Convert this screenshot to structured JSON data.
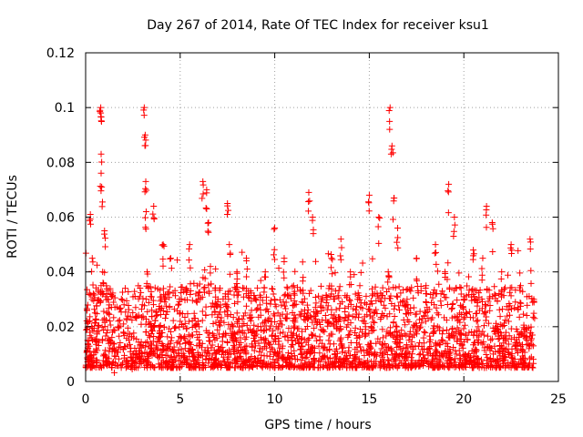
{
  "chart_data": {
    "type": "scatter",
    "title": "Day 267 of 2014, Rate Of TEC Index for receiver ksu1",
    "xlabel": "GPS time / hours",
    "ylabel": "ROTI / TECUs",
    "xlim": [
      0,
      25
    ],
    "ylim": [
      0,
      0.12
    ],
    "x_ticks": [
      0,
      5,
      10,
      15,
      20,
      25
    ],
    "x_tick_labels": [
      "0",
      "5",
      "10",
      "15",
      "20",
      "25"
    ],
    "y_ticks": [
      0,
      0.02,
      0.04,
      0.06,
      0.08,
      0.1,
      0.12
    ],
    "y_tick_labels": [
      "0",
      "0.02",
      "0.04",
      "0.06",
      "0.08",
      "0.1",
      "0.12"
    ],
    "grid": true,
    "marker": "+",
    "color": "#ff0000",
    "series": [
      {
        "name": "ROTI",
        "x": [
          0.1,
          0.25,
          0.35,
          0.5,
          0.6,
          0.8,
          0.8,
          0.82,
          0.85,
          0.9,
          1.0,
          1.2,
          1.5,
          2.0,
          2.5,
          3.0,
          3.1,
          3.15,
          3.18,
          3.2,
          3.25,
          3.5,
          3.6,
          4.0,
          4.1,
          4.5,
          5.0,
          5.5,
          6.0,
          6.2,
          6.4,
          6.5,
          6.6,
          7.0,
          7.5,
          7.6,
          7.8,
          8.0,
          8.5,
          9.0,
          9.5,
          10.0,
          10.2,
          10.5,
          11.0,
          11.5,
          11.8,
          12.0,
          12.5,
          13.0,
          13.5,
          14.0,
          14.5,
          14.8,
          15.0,
          15.5,
          16.0,
          16.1,
          16.2,
          16.3,
          16.5,
          17.0,
          17.5,
          18.0,
          18.5,
          19.0,
          19.2,
          19.5,
          20.0,
          20.5,
          21.0,
          21.2,
          21.5,
          22.0,
          22.5,
          23.0,
          23.5,
          23.7
        ],
        "values": [
          0.015,
          0.061,
          0.045,
          0.025,
          0.018,
          0.1,
          0.098,
          0.083,
          0.071,
          0.04,
          0.055,
          0.03,
          0.012,
          0.018,
          0.01,
          0.028,
          0.1,
          0.09,
          0.073,
          0.062,
          0.04,
          0.02,
          0.064,
          0.03,
          0.05,
          0.045,
          0.025,
          0.05,
          0.02,
          0.073,
          0.07,
          0.058,
          0.042,
          0.03,
          0.065,
          0.05,
          0.02,
          0.04,
          0.045,
          0.03,
          0.04,
          0.056,
          0.02,
          0.045,
          0.035,
          0.038,
          0.069,
          0.06,
          0.03,
          0.045,
          0.052,
          0.04,
          0.035,
          0.02,
          0.068,
          0.06,
          0.04,
          0.1,
          0.086,
          0.067,
          0.056,
          0.03,
          0.045,
          0.035,
          0.05,
          0.04,
          0.072,
          0.06,
          0.03,
          0.048,
          0.045,
          0.064,
          0.058,
          0.04,
          0.05,
          0.035,
          0.052,
          0.03
        ],
        "baseline_range": [
          0.005,
          0.035
        ]
      }
    ]
  }
}
